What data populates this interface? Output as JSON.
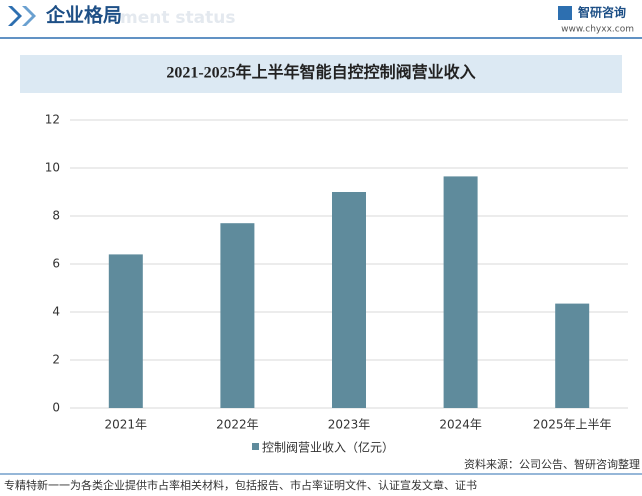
{
  "header": {
    "title": "企业格局",
    "subtitle": "ment status",
    "logo": "智研咨询",
    "website": "www.chyxx.com"
  },
  "chart_data": {
    "type": "bar",
    "title": "2021-2025年上半年智能自控控制阀营业收入",
    "categories": [
      "2021年",
      "2022年",
      "2023年",
      "2024年",
      "2025年上半年"
    ],
    "series": [
      {
        "name": "控制阀营业收入（亿元）",
        "color": "#5f8b9c",
        "values": [
          6.4,
          7.7,
          9.0,
          9.65,
          4.35
        ]
      }
    ],
    "ylim": [
      0,
      12
    ],
    "yticks": [
      0,
      2,
      4,
      6,
      8,
      10,
      12
    ],
    "grid": true,
    "legend": "bottom"
  },
  "footer": {
    "source": "资料来源：公司公告、智研咨询整理",
    "note": "专精特新一一为各类企业提供市占率相关材料，包括报告、市占率证明文件、认证宣发文章、证书"
  }
}
